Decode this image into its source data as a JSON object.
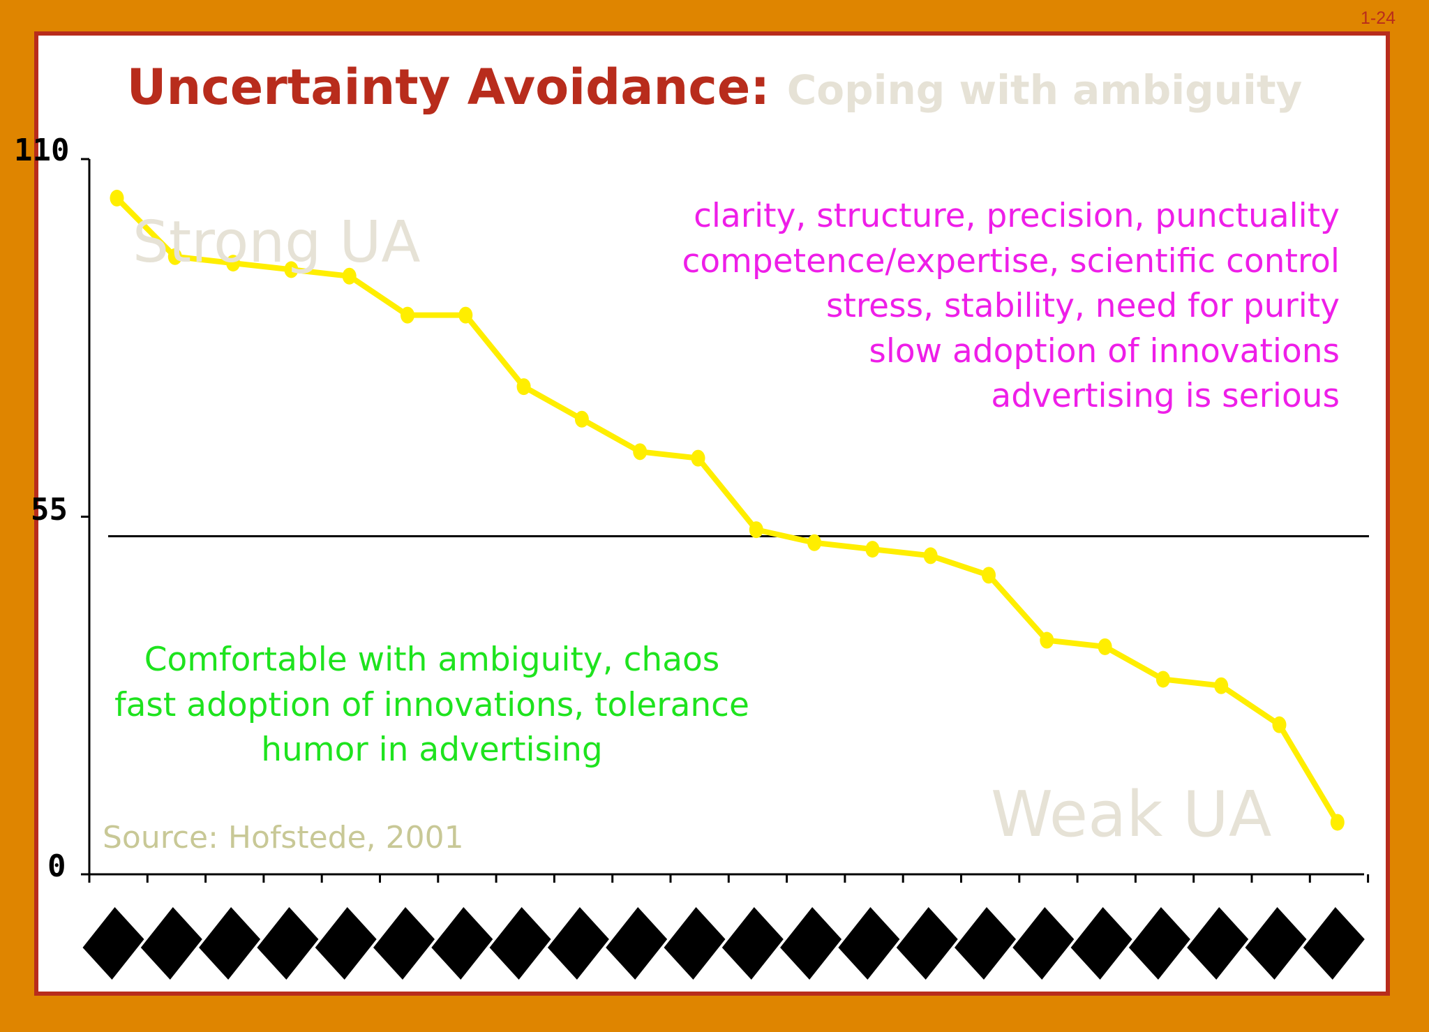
{
  "page_number": "1-24",
  "title": {
    "main": "Uncertainty Avoidance:",
    "sub": "Coping with ambiguity"
  },
  "annotations": {
    "strong_ua": "Strong UA",
    "weak_ua": "Weak UA",
    "strong_traits": [
      "clarity, structure, precision, punctuality",
      "competence/expertise, scientific control",
      "stress, stability, need for purity",
      "slow adoption of innovations",
      "advertising is serious"
    ],
    "weak_traits": [
      "Comfortable with ambiguity, chaos",
      "fast adoption of innovations, tolerance",
      "humor in advertising"
    ],
    "source": "Source: Hofstede, 2001"
  },
  "colors": {
    "line": "#ffee00",
    "reference_line": "#000000",
    "strong_traits": "#ee1ee8",
    "weak_traits": "#1ee31e",
    "title": "#b82c1c",
    "frame": "#df8500"
  },
  "chart_data": {
    "type": "line",
    "title": "Uncertainty Avoidance: Coping with ambiguity",
    "xlabel": "",
    "ylabel": "",
    "ylim": [
      0,
      110
    ],
    "yticks": [
      "0",
      "55",
      "110"
    ],
    "reference_line": 52,
    "category_count": 22,
    "x_tick_labels_illegible": true,
    "values": [
      104,
      95,
      94,
      93,
      92,
      86,
      86,
      75,
      70,
      65,
      64,
      53,
      51,
      50,
      49,
      46,
      36,
      35,
      30,
      29,
      23,
      8
    ],
    "grid": false,
    "legend": "none"
  }
}
